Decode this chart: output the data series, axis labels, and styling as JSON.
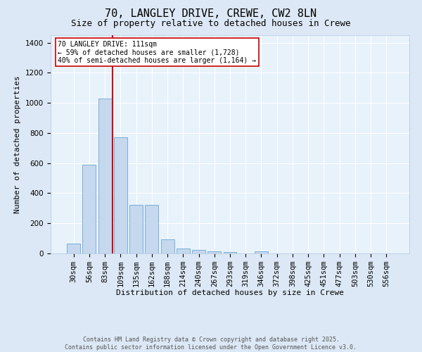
{
  "title": "70, LANGLEY DRIVE, CREWE, CW2 8LN",
  "subtitle": "Size of property relative to detached houses in Crewe",
  "xlabel": "Distribution of detached houses by size in Crewe",
  "ylabel": "Number of detached properties",
  "categories": [
    "30sqm",
    "56sqm",
    "83sqm",
    "109sqm",
    "135sqm",
    "162sqm",
    "188sqm",
    "214sqm",
    "240sqm",
    "267sqm",
    "293sqm",
    "319sqm",
    "346sqm",
    "372sqm",
    "398sqm",
    "425sqm",
    "451sqm",
    "477sqm",
    "503sqm",
    "530sqm",
    "556sqm"
  ],
  "values": [
    65,
    590,
    1030,
    770,
    325,
    325,
    95,
    35,
    25,
    15,
    10,
    0,
    15,
    0,
    0,
    0,
    0,
    0,
    0,
    0,
    0
  ],
  "bar_color": "#c5d8ee",
  "bar_edge_color": "#7aaed6",
  "vline_x_data": 2.5,
  "vline_color": "#cc0000",
  "annotation_text": "70 LANGLEY DRIVE: 111sqm\n← 59% of detached houses are smaller (1,728)\n40% of semi-detached houses are larger (1,164) →",
  "annotation_box_color": "#ffffff",
  "annotation_box_edge": "#cc0000",
  "footer_line1": "Contains HM Land Registry data © Crown copyright and database right 2025.",
  "footer_line2": "Contains public sector information licensed under the Open Government Licence v3.0.",
  "bg_color": "#dce8f5",
  "plot_bg_color": "#e8f2fb",
  "ylim": [
    0,
    1450
  ],
  "yticks": [
    0,
    200,
    400,
    600,
    800,
    1000,
    1200,
    1400
  ],
  "title_fontsize": 11,
  "subtitle_fontsize": 9,
  "tick_fontsize": 7.5,
  "ylabel_fontsize": 8,
  "xlabel_fontsize": 8
}
